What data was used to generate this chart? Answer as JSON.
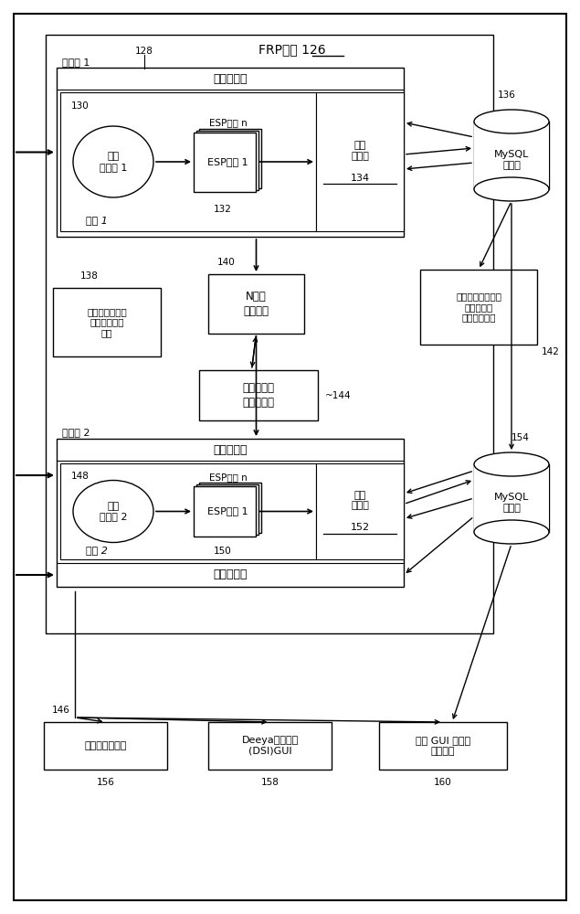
{
  "bg_color": "#ffffff",
  "title_frp": "FRP系统 126",
  "label_server1": "服务器 1",
  "label_server2": "服务器 2",
  "label_data_fetcher": "数据获取器",
  "label_file_sync1": "文件\n同步器 1",
  "label_file_sync2": "文件\n同步器 2",
  "label_esp_n": "ESP文件 n",
  "label_esp1": "ESP文件 1",
  "label_data_acq1": "数据\n获取器\n134",
  "label_data_acq2": "数据\n获取器\n152",
  "label_mysql": "MySQL\n数据库",
  "label_pos1": "位置 1",
  "label_pos2": "位置 2",
  "label_report": "标准报告曲线、\n概要、消费者\n数据",
  "label_n_root_db": "N元组\n根数据库",
  "label_online_tool": "针对在线数据访问\n和可视化的\n在线网页工具",
  "label_flow_battery": "液流蓄电池\n模型和预测",
  "label_consumer_gw": "消费者入口网关",
  "label_deeya_gui": "Deeya系统信息\n(DSI)GUI",
  "label_online_gui": "在线 GUI 操作员\n始终观看",
  "num_128": "128",
  "num_130": "130",
  "num_132": "132",
  "num_134": "134",
  "num_136": "136",
  "num_138": "138",
  "num_140": "140",
  "num_142": "142",
  "num_144": "144",
  "num_146": "146",
  "num_148": "148",
  "num_150": "150",
  "num_152": "152",
  "num_154": "154",
  "num_156": "156",
  "num_158": "158",
  "num_160": "160"
}
